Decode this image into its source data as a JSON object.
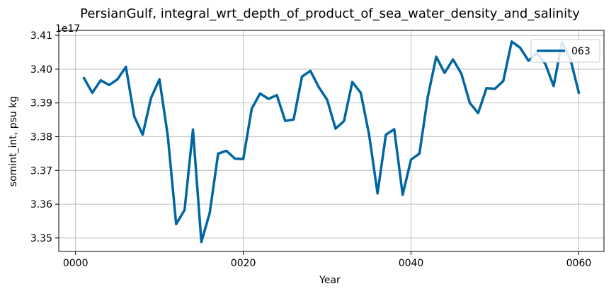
{
  "chart_data": {
    "type": "line",
    "title": "PersianGulf, integral_wrt_depth_of_product_of_sea_water_density_and_salinity",
    "xlabel": "Year",
    "ylabel": "somint_int, psu kg",
    "y_offset_label": "1e17",
    "xlim": [
      -2,
      63
    ],
    "ylim": [
      3.346,
      3.4115
    ],
    "xticks": [
      0,
      20,
      40,
      60
    ],
    "xtick_labels": [
      "0000",
      "0020",
      "0040",
      "0060"
    ],
    "yticks": [
      3.35,
      3.36,
      3.37,
      3.38,
      3.39,
      3.4,
      3.41
    ],
    "ytick_labels": [
      "3.35",
      "3.36",
      "3.37",
      "3.38",
      "3.39",
      "3.40",
      "3.41"
    ],
    "grid": true,
    "legend_position": "top-right",
    "colors": {
      "series": "#0066a2"
    },
    "series": [
      {
        "name": "063",
        "x": [
          1,
          2,
          3,
          4,
          5,
          6,
          7,
          8,
          9,
          10,
          11,
          12,
          13,
          14,
          15,
          16,
          17,
          18,
          19,
          20,
          21,
          22,
          23,
          24,
          25,
          26,
          27,
          28,
          29,
          30,
          31,
          32,
          33,
          34,
          35,
          36,
          37,
          38,
          39,
          40,
          41,
          42,
          43,
          44,
          45,
          46,
          47,
          48,
          49,
          50,
          51,
          52,
          53,
          54,
          55,
          56,
          57,
          58,
          59,
          60
        ],
        "values": [
          3.3974,
          3.393,
          3.3967,
          3.3953,
          3.397,
          3.4007,
          3.386,
          3.3806,
          3.3915,
          3.397,
          3.3802,
          3.3541,
          3.3583,
          3.3821,
          3.3488,
          3.3574,
          3.375,
          3.3758,
          3.3735,
          3.3734,
          3.3883,
          3.3928,
          3.3912,
          3.3923,
          3.3847,
          3.3851,
          3.3978,
          3.3995,
          3.3947,
          3.3909,
          3.3824,
          3.3846,
          3.3962,
          3.393,
          3.3806,
          3.3632,
          3.3806,
          3.3822,
          3.3628,
          3.3732,
          3.375,
          3.3918,
          3.4037,
          3.3989,
          3.4029,
          3.3987,
          3.39,
          3.387,
          3.3944,
          3.3942,
          3.3965,
          3.4082,
          3.4064,
          3.4025,
          3.4048,
          3.4016,
          3.395,
          3.408,
          3.403,
          3.393
        ]
      }
    ]
  }
}
